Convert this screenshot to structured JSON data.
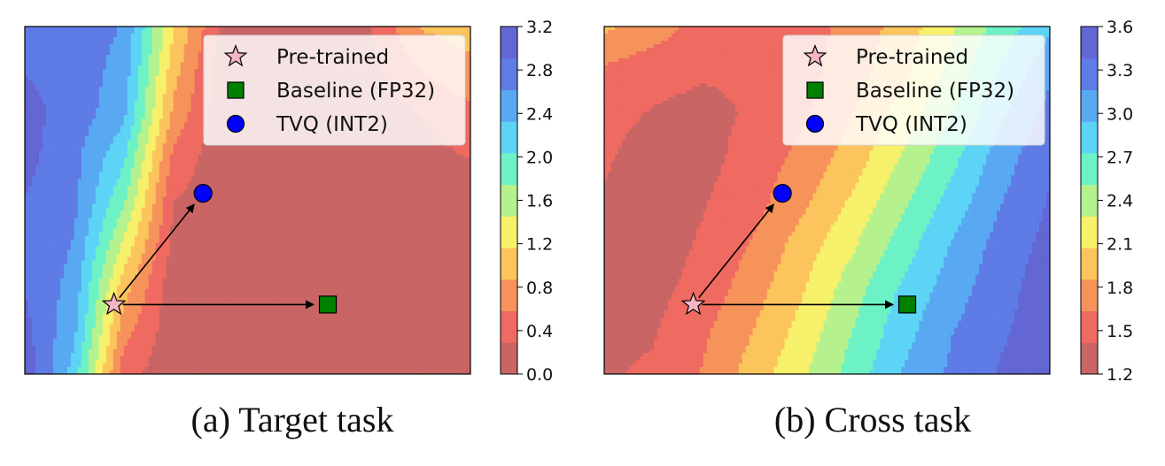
{
  "chart_data": [
    {
      "type": "heatmap",
      "caption": "(a) Target task",
      "xlabel": "",
      "ylabel": "",
      "colorbar": {
        "min": 0.0,
        "max": 3.2,
        "ticks": [
          "0.0",
          "0.4",
          "0.8",
          "1.2",
          "1.6",
          "2.0",
          "2.4",
          "2.8",
          "3.2"
        ]
      },
      "contour_field": {
        "rows": 9,
        "cols": 10,
        "values": [
          [
            2.9,
            2.8,
            2.6,
            1.2,
            0.2,
            0.1,
            0.1,
            0.3,
            0.9,
            1.0
          ],
          [
            2.9,
            2.8,
            2.5,
            1.0,
            0.1,
            0.1,
            0.1,
            0.2,
            0.6,
            0.8
          ],
          [
            3.0,
            2.8,
            2.4,
            0.8,
            0.1,
            0.0,
            0.1,
            0.1,
            0.3,
            0.5
          ],
          [
            3.0,
            2.7,
            2.1,
            0.5,
            0.1,
            0.0,
            0.0,
            0.1,
            0.2,
            0.3
          ],
          [
            2.9,
            2.7,
            1.8,
            0.3,
            0.1,
            0.0,
            0.0,
            0.0,
            0.1,
            0.2
          ],
          [
            2.9,
            2.6,
            1.4,
            0.2,
            0.1,
            0.0,
            0.0,
            0.0,
            0.1,
            0.1
          ],
          [
            2.9,
            2.5,
            1.0,
            0.1,
            0.0,
            0.0,
            0.0,
            0.0,
            0.1,
            0.1
          ],
          [
            3.0,
            2.4,
            0.7,
            0.1,
            0.0,
            0.0,
            0.0,
            0.0,
            0.0,
            0.1
          ],
          [
            3.1,
            2.2,
            0.4,
            0.1,
            0.0,
            0.0,
            0.0,
            0.0,
            0.0,
            0.1
          ]
        ]
      },
      "points": [
        {
          "name": "Pre-trained",
          "marker": "star",
          "color": "#f4b6c2",
          "x": 0.2,
          "y": 0.2
        },
        {
          "name": "Baseline (FP32)",
          "marker": "square",
          "color": "#008000",
          "x": 0.68,
          "y": 0.2
        },
        {
          "name": "TVQ (INT2)",
          "marker": "circle",
          "color": "#0000ff",
          "x": 0.4,
          "y": 0.52
        }
      ],
      "arrows": [
        {
          "from": "Pre-trained",
          "to": "TVQ (INT2)"
        },
        {
          "from": "Pre-trained",
          "to": "Baseline (FP32)"
        }
      ],
      "legend": [
        "Pre-trained",
        "Baseline (FP32)",
        "TVQ (INT2)"
      ],
      "legend_position": "top-right"
    },
    {
      "type": "heatmap",
      "caption": "(b) Cross task",
      "xlabel": "",
      "ylabel": "",
      "colorbar": {
        "min": 1.2,
        "max": 3.6,
        "ticks": [
          "1.2",
          "1.5",
          "1.8",
          "2.1",
          "2.4",
          "2.7",
          "3.0",
          "3.3",
          "3.6"
        ]
      },
      "contour_field": {
        "rows": 9,
        "cols": 10,
        "values": [
          [
            1.9,
            1.75,
            1.55,
            1.5,
            1.55,
            1.7,
            1.95,
            2.25,
            2.6,
            2.9
          ],
          [
            1.6,
            1.5,
            1.45,
            1.45,
            1.55,
            1.75,
            2.0,
            2.35,
            2.75,
            3.1
          ],
          [
            1.5,
            1.4,
            1.35,
            1.45,
            1.6,
            1.85,
            2.15,
            2.5,
            2.9,
            3.25
          ],
          [
            1.45,
            1.3,
            1.35,
            1.5,
            1.7,
            1.95,
            2.3,
            2.65,
            3.05,
            3.35
          ],
          [
            1.4,
            1.3,
            1.4,
            1.55,
            1.8,
            2.1,
            2.45,
            2.8,
            3.15,
            3.4
          ],
          [
            1.35,
            1.3,
            1.45,
            1.65,
            1.95,
            2.25,
            2.6,
            2.95,
            3.25,
            3.45
          ],
          [
            1.35,
            1.35,
            1.5,
            1.75,
            2.05,
            2.4,
            2.75,
            3.05,
            3.3,
            3.5
          ],
          [
            1.35,
            1.4,
            1.6,
            1.85,
            2.15,
            2.5,
            2.85,
            3.15,
            3.35,
            3.5
          ],
          [
            1.4,
            1.45,
            1.65,
            1.95,
            2.25,
            2.6,
            2.95,
            3.2,
            3.4,
            3.5
          ]
        ]
      },
      "points": [
        {
          "name": "Pre-trained",
          "marker": "star",
          "color": "#f4b6c2",
          "x": 0.2,
          "y": 0.2
        },
        {
          "name": "Baseline (FP32)",
          "marker": "square",
          "color": "#008000",
          "x": 0.68,
          "y": 0.2
        },
        {
          "name": "TVQ (INT2)",
          "marker": "circle",
          "color": "#0000ff",
          "x": 0.4,
          "y": 0.52
        }
      ],
      "arrows": [
        {
          "from": "Pre-trained",
          "to": "TVQ (INT2)"
        },
        {
          "from": "Pre-trained",
          "to": "Baseline (FP32)"
        }
      ],
      "legend": [
        "Pre-trained",
        "Baseline (FP32)",
        "TVQ (INT2)"
      ],
      "legend_position": "top-right"
    }
  ],
  "colormap": [
    "#c96565",
    "#ef6a60",
    "#f6935a",
    "#fcc45d",
    "#f7f06a",
    "#b5f28e",
    "#6df2c5",
    "#5dd4f5",
    "#59a8f2",
    "#5e7be6",
    "#6366d3"
  ]
}
